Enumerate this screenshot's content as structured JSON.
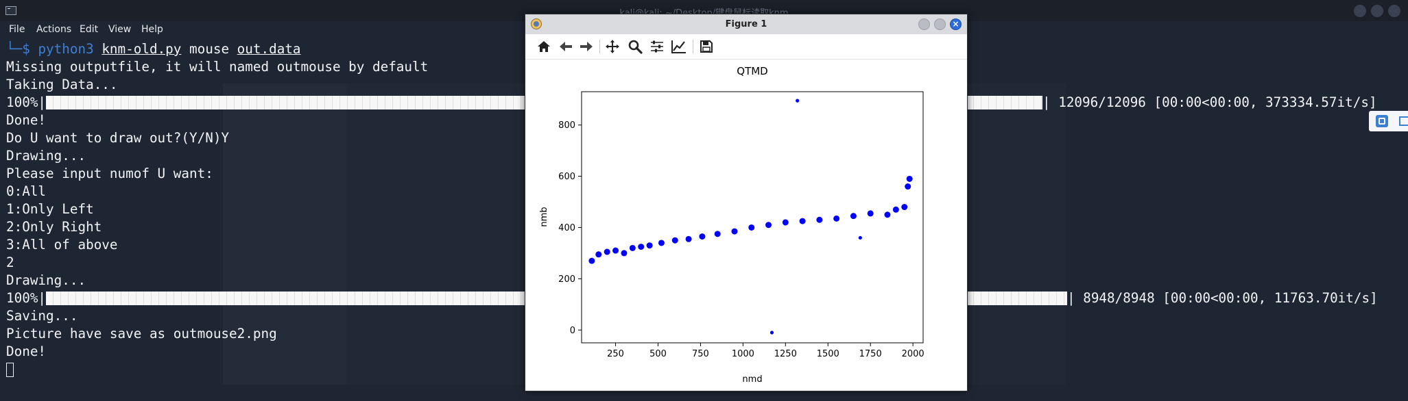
{
  "terminal": {
    "window_title": "kali@kali: ~/Desktop/键盘鼠标读取knm",
    "menu": [
      "File",
      "Actions",
      "Edit",
      "View",
      "Help"
    ],
    "prompt_arrow": "└─$",
    "command": {
      "program": "python3",
      "script": "knm-old.py",
      "arg1": "mouse",
      "arg2": "out.data"
    },
    "lines": [
      "Missing outputfile, it will named outmouse by default",
      "Taking Data...",
      "100%|",
      "Done!",
      "Do U want to draw out?(Y/N)Y",
      "Drawing...",
      "Please input numof U want:",
      "0:All",
      "1:Only Left",
      "2:Only Right",
      "3:All of above",
      "2",
      "Drawing...",
      "100%|",
      "Saving...",
      "Picture have save as outmouse2.png",
      "Done!"
    ],
    "progress1": {
      "fraction": 1.0,
      "suffix": "| 12096/12096 [00:00<00:00, 373334.57it/s]"
    },
    "progress2": {
      "fraction": 1.0,
      "suffix": "| 8948/8948 [00:00<00:00, 11763.70it/s]"
    }
  },
  "figure": {
    "window_title": "Figure 1",
    "toolbar_icons": [
      "home-icon",
      "back-arrow-icon",
      "forward-arrow-icon",
      "pan-icon",
      "zoom-icon",
      "configure-subplots-icon",
      "edit-axis-icon",
      "save-icon"
    ],
    "accent": "#2d6bd8"
  },
  "chart_data": {
    "type": "scatter",
    "title": "QTMD",
    "xlabel": "nmd",
    "ylabel": "nmb",
    "xlim": [
      50,
      2060
    ],
    "ylim": [
      -50,
      930
    ],
    "xticks": [
      250,
      500,
      750,
      1000,
      1250,
      1500,
      1750,
      2000
    ],
    "yticks": [
      0,
      200,
      400,
      600,
      800
    ],
    "grid": false,
    "series": [
      {
        "color": "#0000ff",
        "x": [
          1320,
          1170,
          1690,
          110,
          150,
          200,
          250,
          300,
          350,
          400,
          450,
          520,
          600,
          680,
          760,
          850,
          950,
          1050,
          1150,
          1250,
          1350,
          1450,
          1550,
          1650,
          1750,
          1850,
          1900,
          1950,
          1970,
          1980
        ],
        "y": [
          895,
          -10,
          360,
          270,
          295,
          305,
          310,
          300,
          320,
          325,
          330,
          340,
          350,
          355,
          365,
          375,
          385,
          400,
          410,
          420,
          425,
          430,
          435,
          445,
          455,
          450,
          470,
          480,
          560,
          590
        ]
      }
    ]
  }
}
